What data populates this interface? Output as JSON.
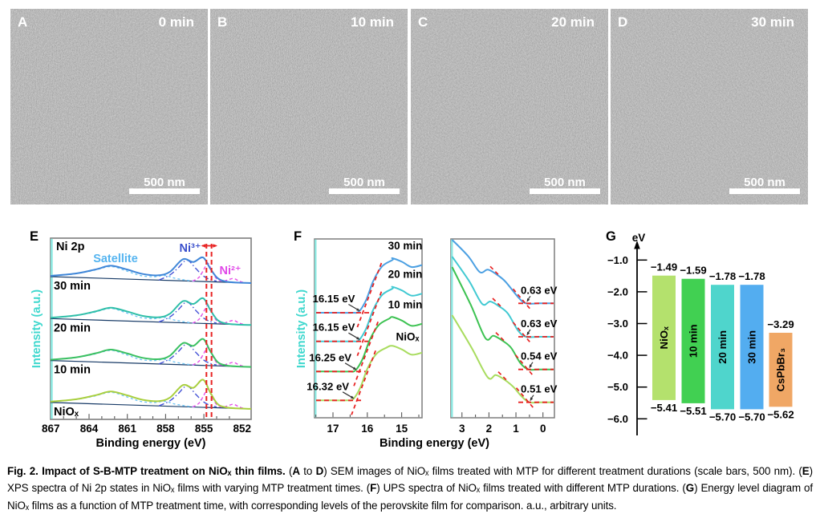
{
  "sem_panels": [
    {
      "letter": "A",
      "time_label": "0 min",
      "scale_label": "500 nm"
    },
    {
      "letter": "B",
      "time_label": "10 min",
      "scale_label": "500 nm"
    },
    {
      "letter": "C",
      "time_label": "20 min",
      "scale_label": "500 nm"
    },
    {
      "letter": "D",
      "time_label": "30 min",
      "scale_label": "500 nm"
    }
  ],
  "chart_data": [
    {
      "id": "E",
      "panel_letter": "E",
      "type": "line",
      "title": "Ni 2p",
      "xlabel": "Binding energy (eV)",
      "ylabel": "Intensity (a.u.)",
      "x_axis_reversed": true,
      "x_range": [
        867.5,
        851.3
      ],
      "x_ticks": [
        867,
        864,
        861,
        858,
        855,
        852
      ],
      "x_tick_labels": [
        "867",
        "864",
        "861",
        "858",
        "855",
        "852"
      ],
      "series": [
        {
          "name": "30 min",
          "color": "#3f86d8"
        },
        {
          "name": "20 min",
          "color": "#2fbfa8"
        },
        {
          "name": "10 min",
          "color": "#3ac061"
        },
        {
          "name": "NiOₓ",
          "color": "#a9cf3f"
        }
      ],
      "components": [
        {
          "name": "Satellite",
          "color": "#70c6f5",
          "style": "dashed"
        },
        {
          "name": "Ni³⁺",
          "color": "#4553d6",
          "style": "dash-dot"
        },
        {
          "name": "Ni²⁺",
          "color": "#e64fe6",
          "style": "dashed"
        }
      ],
      "baseline_color": "#173a66",
      "annotations": [
        {
          "text": "Satellite",
          "color": "#54b4f0"
        },
        {
          "text": "Ni³⁺",
          "color": "#3b50cc"
        },
        {
          "text": "Ni²⁺",
          "color": "#e048e8"
        }
      ],
      "reference_lines_eV": [
        854.8,
        854.4
      ],
      "accent_color": "#e82222",
      "axis_color": "#3fd8ce"
    },
    {
      "id": "F_cutoff",
      "panel_letter": "F",
      "type": "line",
      "xlabel": "Binding energy (eV)",
      "ylabel": "Intensity (a.u.)",
      "x_axis_reversed": true,
      "x_range": [
        17.55,
        14.45
      ],
      "x_ticks": [
        17,
        16,
        15
      ],
      "x_tick_labels": [
        "17",
        "16",
        "15"
      ],
      "series": [
        {
          "name": "30 min",
          "cutoff_eV": 16.15,
          "label": "16.15 eV",
          "color": "#4a9fe2"
        },
        {
          "name": "20 min",
          "cutoff_eV": 16.15,
          "label": "16.15 eV",
          "color": "#41c9d2"
        },
        {
          "name": "10 min",
          "cutoff_eV": 16.25,
          "label": "16.25 eV",
          "color": "#3cc251"
        },
        {
          "name": "NiOₓ",
          "cutoff_eV": 16.32,
          "label": "16.32 eV",
          "color": "#a8dc5e"
        }
      ],
      "accent_color": "#e82222",
      "axis_color": "#3fd8ce"
    },
    {
      "id": "F_onset",
      "type": "line",
      "x_axis_reversed": true,
      "x_range": [
        3.4,
        -0.45
      ],
      "x_ticks": [
        3,
        2,
        1,
        0
      ],
      "x_tick_labels": [
        "3",
        "2",
        "1",
        "0"
      ],
      "series": [
        {
          "name": "30 min",
          "onset_eV": 0.63,
          "label": "0.63 eV",
          "color": "#4a9fe2"
        },
        {
          "name": "20 min",
          "onset_eV": 0.63,
          "label": "0.63 eV",
          "color": "#41c9d2"
        },
        {
          "name": "10 min",
          "onset_eV": 0.54,
          "label": "0.54 eV",
          "color": "#3cc251"
        },
        {
          "name": "NiOₓ",
          "onset_eV": 0.51,
          "label": "0.51 eV",
          "color": "#a8dc5e"
        }
      ],
      "accent_color": "#e82222"
    },
    {
      "id": "G",
      "panel_letter": "G",
      "type": "bar",
      "unit_label": "eV",
      "y_ticks": [
        -1.0,
        -2.0,
        -3.0,
        -4.0,
        -5.0,
        -6.0
      ],
      "y_tick_labels": [
        "−1.0",
        "−2.0",
        "−3.0",
        "−4.0",
        "−5.0",
        "−6.0"
      ],
      "bars": [
        {
          "label": "NiOₓ",
          "top_eV": -1.49,
          "bottom_eV": -5.41,
          "top_label": "−1.49",
          "bottom_label": "−5.41",
          "color": "#b4e16d"
        },
        {
          "label": "10 min",
          "top_eV": -1.59,
          "bottom_eV": -5.51,
          "top_label": "−1.59",
          "bottom_label": "−5.51",
          "color": "#41d052"
        },
        {
          "label": "20 min",
          "top_eV": -1.78,
          "bottom_eV": -5.7,
          "top_label": "−1.78",
          "bottom_label": "−5.70",
          "color": "#4fd5cc"
        },
        {
          "label": "30 min",
          "top_eV": -1.78,
          "bottom_eV": -5.7,
          "top_label": "−1.78",
          "bottom_label": "−5.70",
          "color": "#53adf0"
        },
        {
          "label": "CsPbBr₃",
          "top_eV": -3.29,
          "bottom_eV": -5.62,
          "top_label": "−3.29",
          "bottom_label": "−5.62",
          "color": "#f0a765"
        }
      ]
    }
  ],
  "caption": {
    "segments": [
      {
        "t": "Fig. 2. Impact of S-B-MTP treatment on NiOₓ thin films. ",
        "b": true
      },
      {
        "t": "(",
        "b": false
      },
      {
        "t": "A",
        "b": true
      },
      {
        "t": " to ",
        "b": false
      },
      {
        "t": "D",
        "b": true
      },
      {
        "t": ") SEM images of NiOₓ films treated with MTP for different treatment durations (scale bars, 500 nm). (",
        "b": false
      },
      {
        "t": "E",
        "b": true
      },
      {
        "t": ") XPS spectra of Ni 2p states in NiOₓ films with varying MTP treatment times. (",
        "b": false
      },
      {
        "t": "F",
        "b": true
      },
      {
        "t": ") UPS spectra of NiOₓ films treated with different MTP durations. (",
        "b": false
      },
      {
        "t": "G",
        "b": true
      },
      {
        "t": ") Energy level diagram of NiOₓ films as a function of MTP treatment time, with corresponding levels of the perovskite film for comparison. a.u., arbitrary units.",
        "b": false
      }
    ]
  }
}
